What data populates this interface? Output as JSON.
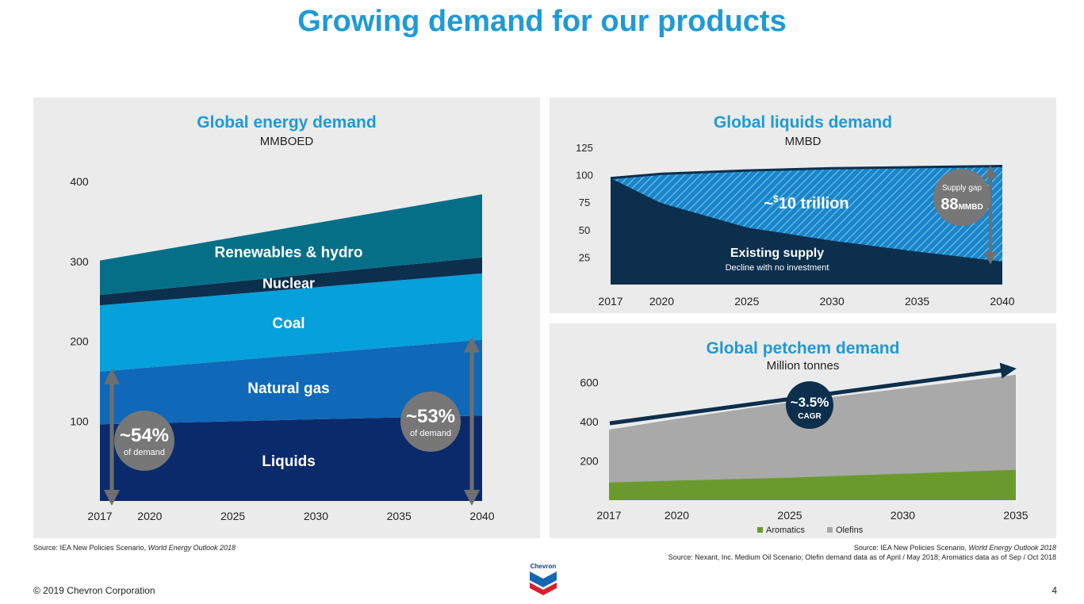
{
  "page": {
    "title": "Growing demand for our products",
    "copyright": "© 2019 Chevron Corporation",
    "page_number": "4",
    "logo_text": "Chevron",
    "source_left_prefix": "Source: IEA New Policies Scenario, ",
    "source_left_italic": "World Energy Outlook 2018",
    "source_right1_prefix": "Source: IEA New Policies Scenario, ",
    "source_right1_italic": "World Energy Outlook 2018",
    "source_right2": "Source: Nexant, Inc. Medium Oil Scenario; Olefin demand data as of April / May 2018; Aromatics data as of Sep / Oct 2018"
  },
  "colors": {
    "accent": "#1e9ad6",
    "liquids": "#0b2a6b",
    "natural_gas": "#0f68b8",
    "coal": "#06a0da",
    "nuclear": "#0b2f4c",
    "renewables": "#066f88",
    "existing_supply": "#0b2f4c",
    "supply_gap": "#1a85c8",
    "aromatics": "#6a9a2e",
    "olefins": "#a9a9a9",
    "bubble": "#777777"
  },
  "chart_data": [
    {
      "type": "area",
      "title": "Global energy demand",
      "subtitle": "MMBOED",
      "x": [
        2017,
        2040
      ],
      "x_ticks": [
        "2017",
        "2020",
        "2025",
        "2030",
        "2035",
        "2040"
      ],
      "x_tick_values": [
        2017,
        2020,
        2025,
        2030,
        2035,
        2040
      ],
      "y_ticks": [
        "100",
        "200",
        "300",
        "400"
      ],
      "y_tick_values": [
        100,
        200,
        300,
        400
      ],
      "ylim": [
        0,
        400
      ],
      "stacked": true,
      "series": [
        {
          "name": "Liquids",
          "values": [
            96,
            107
          ]
        },
        {
          "name": "Natural gas",
          "values": [
            66,
            95
          ]
        },
        {
          "name": "Coal",
          "values": [
            83,
            83
          ]
        },
        {
          "name": "Nuclear",
          "values": [
            13,
            20
          ]
        },
        {
          "name": "Renewables & hydro",
          "values": [
            43,
            79
          ]
        }
      ],
      "annotations": [
        {
          "value": "~54%",
          "label": "of demand"
        },
        {
          "value": "~53%",
          "label": "of demand"
        }
      ]
    },
    {
      "type": "area",
      "title": "Global liquids demand",
      "subtitle": "MMBD",
      "x": [
        2017,
        2020,
        2025,
        2030,
        2035,
        2040
      ],
      "x_ticks": [
        "2017",
        "2020",
        "2025",
        "2030",
        "2035",
        "2040"
      ],
      "y_ticks": [
        "25",
        "50",
        "75",
        "100",
        "125"
      ],
      "y_tick_values": [
        25,
        50,
        75,
        100,
        125
      ],
      "ylim": [
        0,
        125
      ],
      "series": [
        {
          "name": "Demand",
          "values": [
            97,
            101,
            104,
            106,
            107,
            108
          ]
        },
        {
          "name": "Existing supply",
          "values": [
            97,
            74,
            52,
            40,
            30,
            21
          ]
        }
      ],
      "annotations": [
        {
          "prefix": "~",
          "superscript": "$",
          "text": "10 trillion"
        },
        {
          "text": "Existing supply",
          "subtext": "Decline with no investment"
        },
        {
          "label": "Supply gap",
          "value": "88",
          "unit": "MMBD"
        }
      ]
    },
    {
      "type": "area",
      "title": "Global petchem demand",
      "subtitle": "Million tonnes",
      "x": [
        2017,
        2020,
        2025,
        2030,
        2035
      ],
      "x_ticks": [
        "2017",
        "2020",
        "2025",
        "2030",
        "2035"
      ],
      "y_ticks": [
        "200",
        "400",
        "600"
      ],
      "y_tick_values": [
        200,
        400,
        600
      ],
      "ylim": [
        0,
        700
      ],
      "series": [
        {
          "name": "Aromatics",
          "values": [
            90,
            100,
            115,
            135,
            155
          ]
        },
        {
          "name": "Olefins",
          "values": [
            360,
            415,
            500,
            570,
            640
          ]
        }
      ],
      "annotations": [
        {
          "value": "~3.5%",
          "label": "CAGR"
        }
      ]
    }
  ]
}
